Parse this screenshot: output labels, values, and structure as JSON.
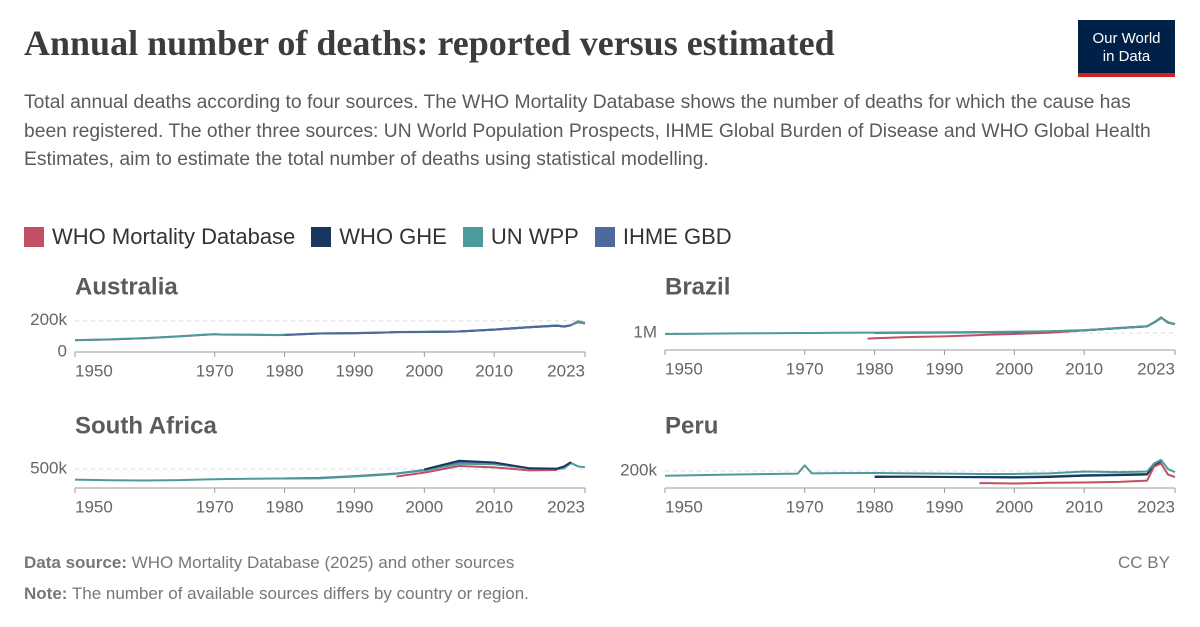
{
  "header": {
    "title": "Annual number of deaths: reported versus estimated",
    "subtitle": "Total annual deaths according to four sources. The WHO Mortality Database shows the number of deaths for which the cause has been registered. The other three sources: UN World Population Prospects, IHME Global Burden of Disease and WHO Global Health Estimates, aim to estimate the total number of deaths using statistical modelling.",
    "logo": [
      "Our World",
      "in Data"
    ]
  },
  "footer": {
    "source_label": "Data source:",
    "source": "WHO Mortality Database (2025) and other sources",
    "note_label": "Note:",
    "note": "The number of available sources differs by country or region.",
    "license": "CC BY"
  },
  "chart_data": [
    {
      "type": "line",
      "title": "Australia",
      "x": [
        1950,
        1955,
        1960,
        1965,
        1969,
        1970,
        1971,
        1975,
        1979,
        1980,
        1985,
        1990,
        1995,
        1996,
        2000,
        2005,
        2010,
        2015,
        2019,
        2020,
        2021,
        2022,
        2023
      ],
      "xlim": [
        1950,
        2023
      ],
      "xticks": [
        1950,
        1970,
        1980,
        1990,
        2000,
        2010,
        2023
      ],
      "ylim": [
        0,
        230000
      ],
      "yticks": [
        0,
        {
          "value": 200000,
          "label": "200k"
        }
      ],
      "grid": true,
      "series": [
        {
          "name": "WHO Mortality Database",
          "color": "#c15065",
          "values": [
            75000,
            80000,
            88000,
            100000,
            111000,
            113000,
            111000,
            110000,
            108000,
            109000,
            118000,
            120000,
            125000,
            127000,
            128000,
            131000,
            143000,
            159000,
            169000,
            162000,
            171000,
            190000,
            182000
          ]
        },
        {
          "name": "WHO GHE",
          "color": "#18375f",
          "values": [
            null,
            null,
            null,
            null,
            null,
            null,
            null,
            null,
            null,
            null,
            null,
            null,
            null,
            null,
            128000,
            131000,
            143000,
            158000,
            168000,
            163000,
            171000,
            null,
            null
          ]
        },
        {
          "name": "UN WPP",
          "color": "#4c9a99",
          "values": [
            76000,
            81000,
            89000,
            101000,
            112000,
            114000,
            112000,
            111000,
            109000,
            110000,
            119000,
            121000,
            126000,
            128000,
            129000,
            132000,
            144000,
            160000,
            170000,
            164000,
            173000,
            197000,
            186000
          ]
        },
        {
          "name": "IHME GBD",
          "color": "#4c6a9c",
          "values": [
            null,
            null,
            null,
            null,
            null,
            null,
            null,
            null,
            null,
            109000,
            118000,
            120000,
            125000,
            127000,
            128000,
            131000,
            143000,
            158000,
            168000,
            162000,
            171000,
            null,
            null
          ]
        }
      ]
    },
    {
      "type": "line",
      "title": "Brazil",
      "x": [
        1950,
        1955,
        1960,
        1965,
        1969,
        1970,
        1971,
        1975,
        1979,
        1980,
        1985,
        1990,
        1995,
        1996,
        2000,
        2005,
        2010,
        2015,
        2019,
        2020,
        2021,
        2022,
        2023
      ],
      "xlim": [
        1950,
        2023
      ],
      "xticks": [
        1950,
        1970,
        1980,
        1990,
        2000,
        2010,
        2023
      ],
      "ylim": [
        100000,
        1900000
      ],
      "yticks": [
        {
          "value": 1000000,
          "label": "1M"
        }
      ],
      "grid": true,
      "series": [
        {
          "name": "IHME GBD",
          "color": "#4c6a9c",
          "values": [
            null,
            null,
            null,
            null,
            null,
            null,
            null,
            null,
            null,
            1000000,
            1010000,
            1020000,
            1030000,
            1035000,
            1040000,
            1070000,
            1140000,
            1260000,
            1360000,
            1550000,
            1790000,
            null,
            null
          ]
        },
        {
          "name": "WHO GHE",
          "color": "#18375f",
          "values": [
            null,
            null,
            null,
            null,
            null,
            null,
            null,
            null,
            null,
            null,
            null,
            null,
            null,
            null,
            1050000,
            1080000,
            1140000,
            1260000,
            1350000,
            1560000,
            1800000,
            null,
            null
          ]
        },
        {
          "name": "WHO Mortality Database",
          "color": "#c15065",
          "values": [
            null,
            null,
            null,
            null,
            null,
            null,
            null,
            null,
            700000,
            720000,
            790000,
            820000,
            890000,
            910000,
            950000,
            1010000,
            1140000,
            1270000,
            1350000,
            1560000,
            1830000,
            1540000,
            1460000
          ]
        },
        {
          "name": "UN WPP",
          "color": "#4c9a99",
          "values": [
            950000,
            960000,
            980000,
            990000,
            1000000,
            1000000,
            1000000,
            1010000,
            1020000,
            1020000,
            1030000,
            1040000,
            1050000,
            1055000,
            1070000,
            1090000,
            1150000,
            1250000,
            1360000,
            1560000,
            1800000,
            1580000,
            1470000
          ]
        }
      ]
    },
    {
      "type": "line",
      "title": "South Africa",
      "x": [
        1950,
        1955,
        1960,
        1965,
        1969,
        1970,
        1971,
        1975,
        1979,
        1980,
        1985,
        1990,
        1995,
        1996,
        2000,
        2005,
        2010,
        2015,
        2019,
        2020,
        2021,
        2022,
        2023
      ],
      "xlim": [
        1950,
        2023
      ],
      "xticks": [
        1950,
        1970,
        1980,
        1990,
        2000,
        2010,
        2023
      ],
      "ylim": [
        70000,
        820000
      ],
      "yticks": [
        {
          "value": 500000,
          "label": "500k"
        }
      ],
      "grid": true,
      "series": [
        {
          "name": "IHME GBD",
          "color": "#4c6a9c",
          "values": [
            null,
            null,
            null,
            null,
            null,
            null,
            null,
            null,
            null,
            290000,
            300000,
            340000,
            390000,
            400000,
            480000,
            650000,
            630000,
            520000,
            500000,
            540000,
            650000,
            null,
            null
          ]
        },
        {
          "name": "UN WPP",
          "color": "#4c9a99",
          "values": [
            260000,
            245000,
            240000,
            250000,
            265000,
            270000,
            272000,
            280000,
            285000,
            285000,
            290000,
            330000,
            380000,
            395000,
            470000,
            620000,
            610000,
            520000,
            500000,
            520000,
            640000,
            560000,
            540000
          ]
        },
        {
          "name": "WHO Mortality Database",
          "color": "#c15065",
          "values": [
            null,
            null,
            null,
            null,
            null,
            null,
            null,
            null,
            null,
            null,
            null,
            null,
            null,
            330000,
            420000,
            570000,
            540000,
            470000,
            480000,
            null,
            null,
            null,
            null
          ]
        },
        {
          "name": "WHO GHE",
          "color": "#18375f",
          "values": [
            null,
            null,
            null,
            null,
            null,
            null,
            null,
            null,
            null,
            null,
            null,
            null,
            null,
            null,
            490000,
            690000,
            650000,
            520000,
            510000,
            560000,
            660000,
            null,
            null
          ]
        }
      ]
    },
    {
      "type": "line",
      "title": "Peru",
      "x": [
        1950,
        1955,
        1960,
        1965,
        1969,
        1970,
        1971,
        1975,
        1979,
        1980,
        1985,
        1990,
        1995,
        1996,
        2000,
        2005,
        2010,
        2015,
        2019,
        2020,
        2021,
        2022,
        2023
      ],
      "xlim": [
        1950,
        2023
      ],
      "xticks": [
        1950,
        1970,
        1980,
        1990,
        2000,
        2010,
        2023
      ],
      "ylim": [
        60000,
        330000
      ],
      "yticks": [
        {
          "value": 200000,
          "label": "200k"
        }
      ],
      "grid": true,
      "series": [
        {
          "name": "IHME GBD",
          "color": "#4c6a9c",
          "values": [
            null,
            null,
            null,
            null,
            null,
            null,
            null,
            null,
            null,
            155000,
            153000,
            151000,
            150000,
            150000,
            150000,
            155000,
            165000,
            170000,
            175000,
            240000,
            270000,
            null,
            null
          ]
        },
        {
          "name": "WHO GHE",
          "color": "#18375f",
          "values": [
            null,
            null,
            null,
            null,
            null,
            null,
            null,
            null,
            null,
            150000,
            152000,
            150000,
            148000,
            148000,
            146000,
            150000,
            160000,
            165000,
            170000,
            250000,
            275000,
            null,
            null
          ]
        },
        {
          "name": "WHO Mortality Database",
          "color": "#c15065",
          "values": [
            null,
            null,
            null,
            null,
            null,
            null,
            null,
            null,
            null,
            null,
            null,
            null,
            100000,
            100000,
            97000,
            103000,
            105000,
            110000,
            120000,
            235000,
            260000,
            170000,
            150000
          ]
        },
        {
          "name": "UN WPP",
          "color": "#4c9a99",
          "values": [
            160000,
            165000,
            170000,
            175000,
            178000,
            245000,
            180000,
            182000,
            183000,
            183000,
            180000,
            178000,
            175000,
            175000,
            175000,
            180000,
            195000,
            190000,
            195000,
            260000,
            290000,
            215000,
            190000
          ]
        }
      ]
    }
  ]
}
